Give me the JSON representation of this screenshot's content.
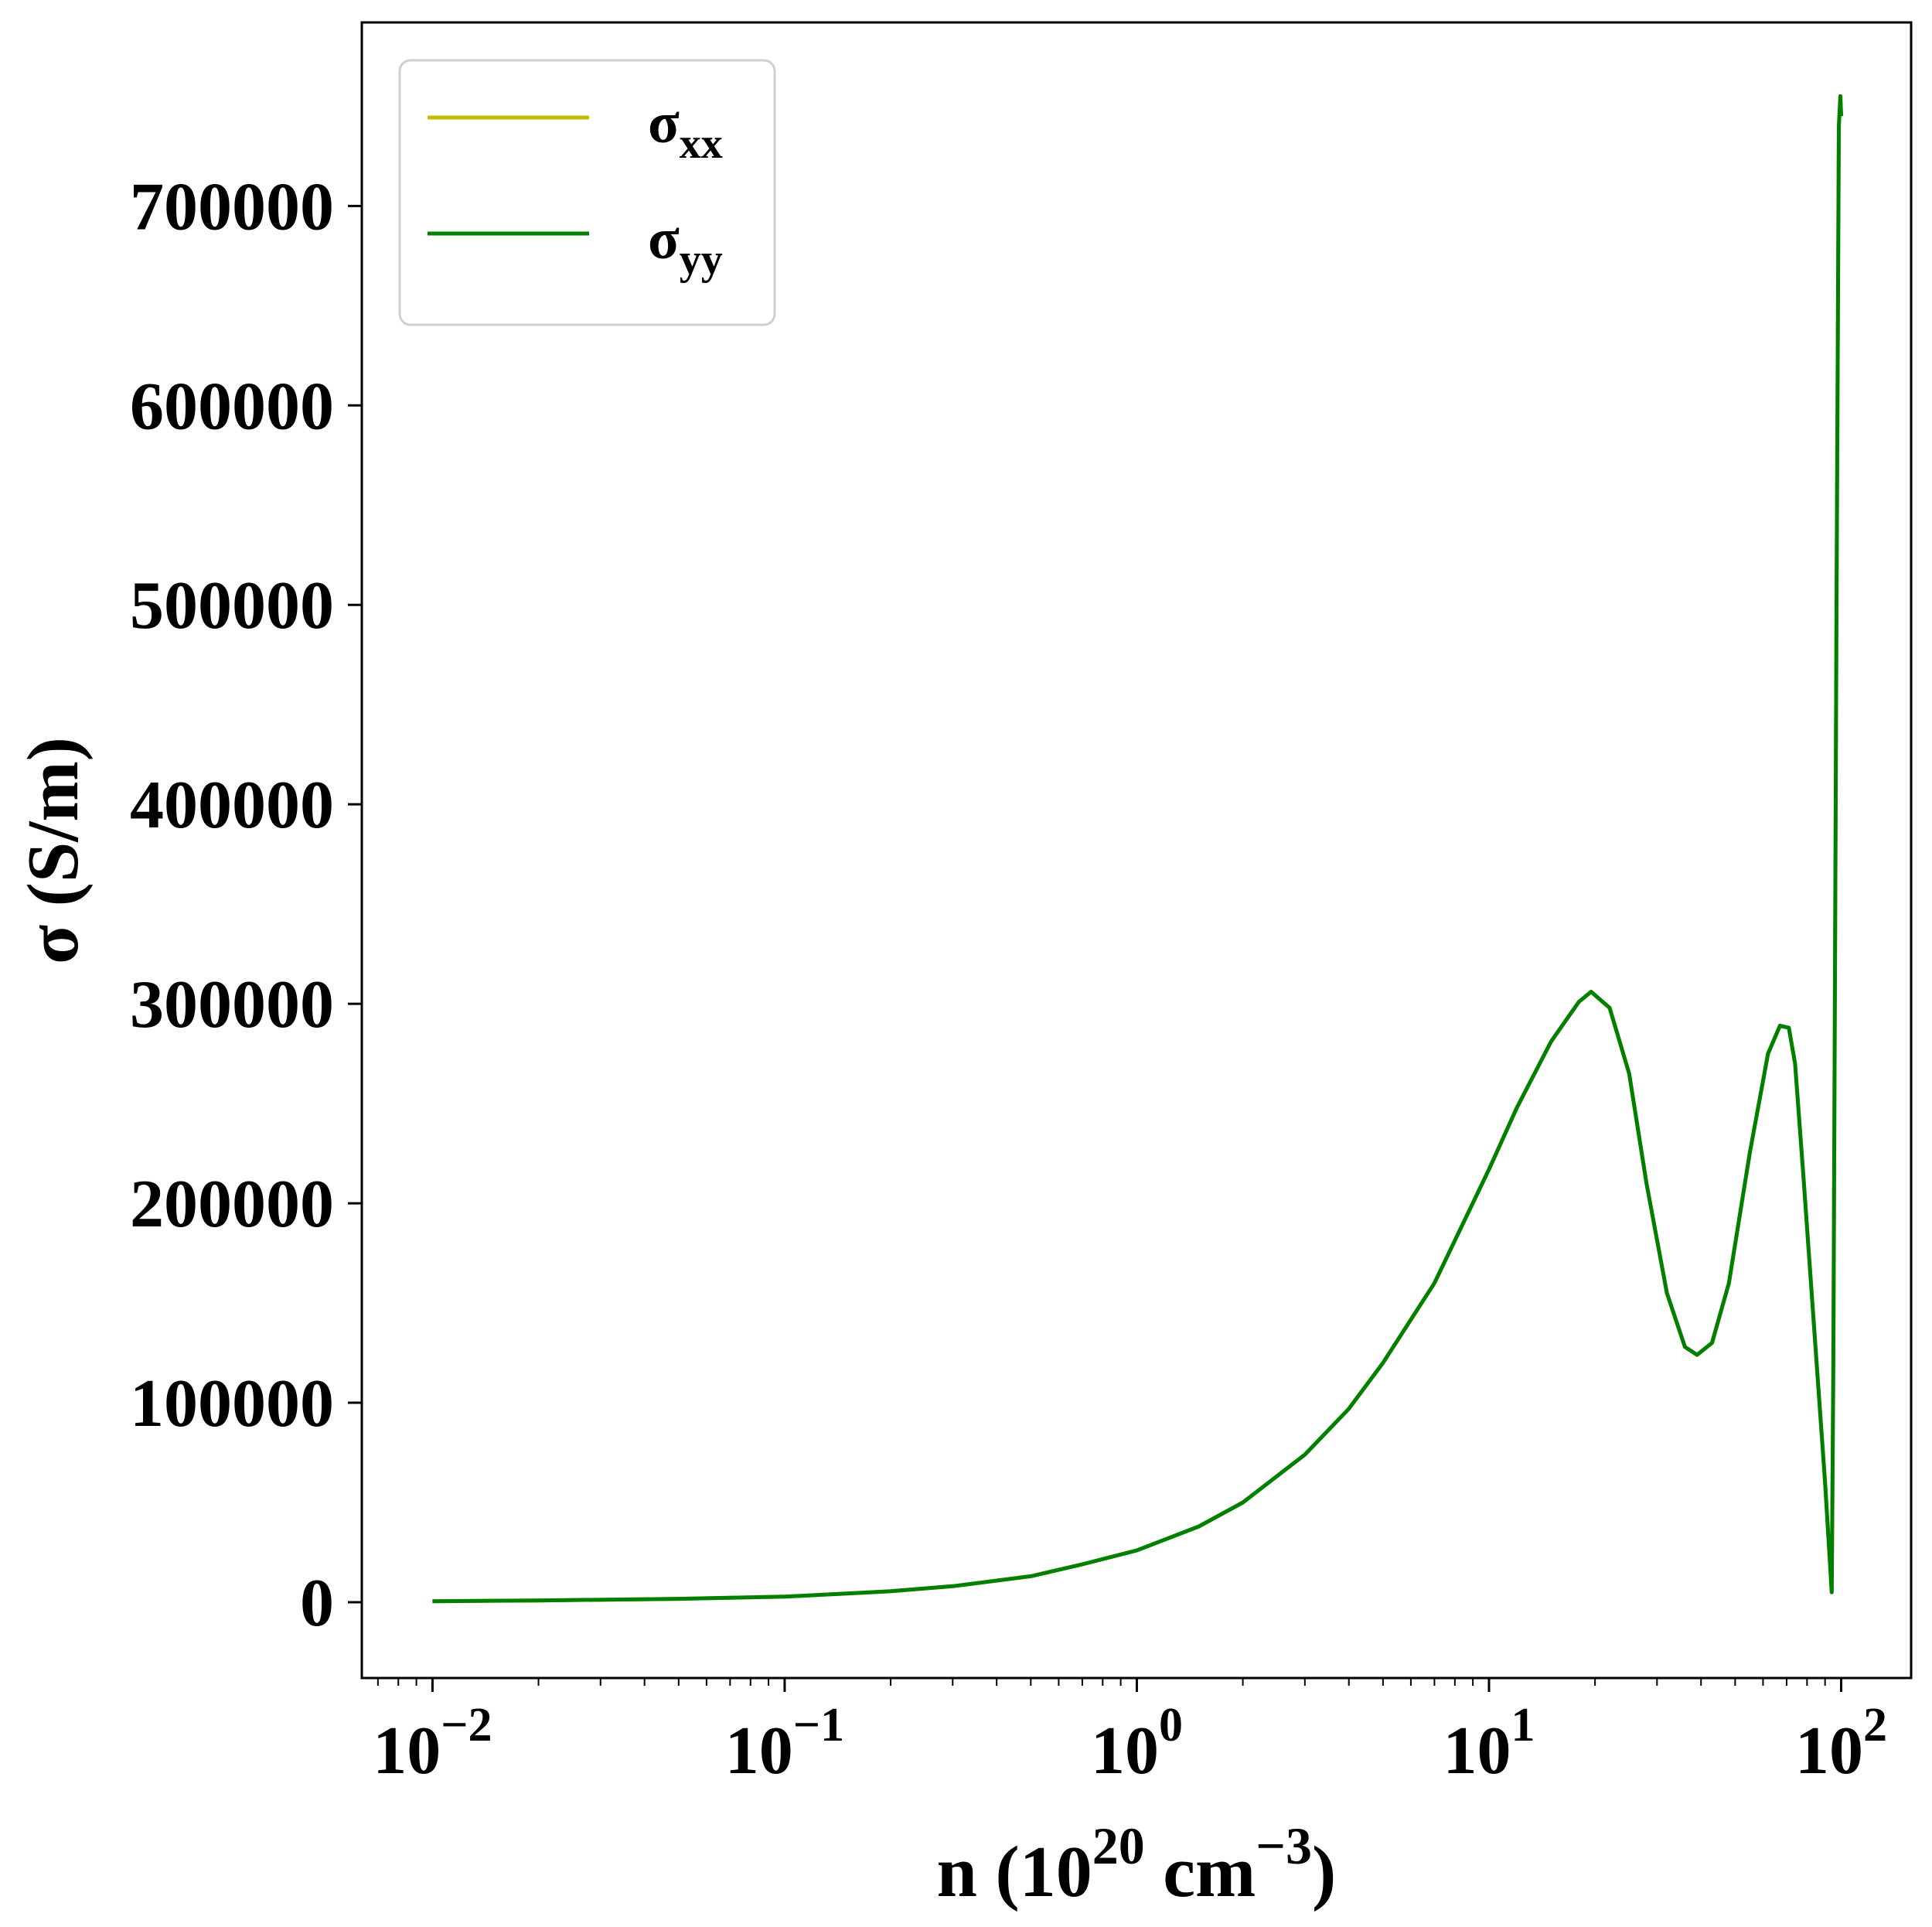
{
  "chart_data": {
    "type": "line",
    "xlabel": {
      "main": "n (10",
      "sup1": "20",
      "mid": " cm",
      "sup2": "−3",
      "end": ")"
    },
    "ylabel": "σ (S/m)",
    "xscale": "log",
    "xlim": [
      0.0063,
      158
    ],
    "ylim": [
      -38000,
      792000
    ],
    "x_ticks": [
      {
        "value": 0.01,
        "base": "10",
        "exp": "−2"
      },
      {
        "value": 0.1,
        "base": "10",
        "exp": "−1"
      },
      {
        "value": 1,
        "base": "10",
        "exp": "0"
      },
      {
        "value": 10,
        "base": "10",
        "exp": "1"
      },
      {
        "value": 100,
        "base": "10",
        "exp": "2"
      }
    ],
    "y_ticks": [
      {
        "value": 0,
        "label": "0"
      },
      {
        "value": 100000,
        "label": "100000"
      },
      {
        "value": 200000,
        "label": "200000"
      },
      {
        "value": 300000,
        "label": "300000"
      },
      {
        "value": 400000,
        "label": "400000"
      },
      {
        "value": 500000,
        "label": "500000"
      },
      {
        "value": 600000,
        "label": "600000"
      },
      {
        "value": 700000,
        "label": "700000"
      }
    ],
    "grid": false,
    "legend_position": "top-left",
    "series": [
      {
        "name": "σxx",
        "name_base": "σ",
        "name_sub": "xx",
        "color": "#bfbf00",
        "x": [
          0.01,
          0.02,
          0.05,
          0.1,
          0.2,
          0.3,
          0.5,
          0.7,
          1.0,
          1.5,
          2.0,
          3.0,
          4.0,
          5.0,
          7.0,
          10.0,
          12.0,
          15.0,
          18.0,
          19.5,
          22.0,
          25.0,
          28.0,
          32.0,
          36.0,
          39.0,
          43.0,
          48.0,
          55.0,
          62.0,
          67.0,
          71.0,
          74.0,
          78.0,
          84.0,
          90.0,
          94.0,
          95.0,
          97.0,
          98.5,
          99.5,
          100.0
        ],
        "y": [
          500,
          900,
          1700,
          2800,
          5500,
          8000,
          13000,
          19000,
          26000,
          38000,
          50000,
          74000,
          97000,
          120000,
          160000,
          217000,
          248000,
          281000,
          301000,
          306000,
          298000,
          265000,
          210000,
          155000,
          128000,
          124000,
          130000,
          160000,
          225000,
          275000,
          289000,
          288000,
          270000,
          215000,
          135000,
          60000,
          5000,
          120000,
          500000,
          740000,
          755000,
          745000
        ]
      },
      {
        "name": "σyy",
        "name_base": "σ",
        "name_sub": "yy",
        "color": "#008000",
        "x": [
          0.01,
          0.02,
          0.05,
          0.1,
          0.2,
          0.3,
          0.5,
          0.7,
          1.0,
          1.5,
          2.0,
          3.0,
          4.0,
          5.0,
          7.0,
          10.0,
          12.0,
          15.0,
          18.0,
          19.5,
          22.0,
          25.0,
          28.0,
          32.0,
          36.0,
          39.0,
          43.0,
          48.0,
          55.0,
          62.0,
          67.0,
          71.0,
          74.0,
          78.0,
          84.0,
          90.0,
          94.0,
          95.0,
          97.0,
          98.5,
          99.5,
          100.0
        ],
        "y": [
          500,
          900,
          1700,
          2800,
          5500,
          8000,
          13000,
          19000,
          26000,
          38000,
          50000,
          74000,
          97000,
          120000,
          160000,
          217000,
          248000,
          281000,
          301000,
          306000,
          298000,
          265000,
          210000,
          155000,
          128000,
          124000,
          130000,
          160000,
          225000,
          275000,
          289000,
          288000,
          270000,
          215000,
          135000,
          60000,
          5000,
          120000,
          500000,
          740000,
          755000,
          745000
        ]
      }
    ]
  }
}
